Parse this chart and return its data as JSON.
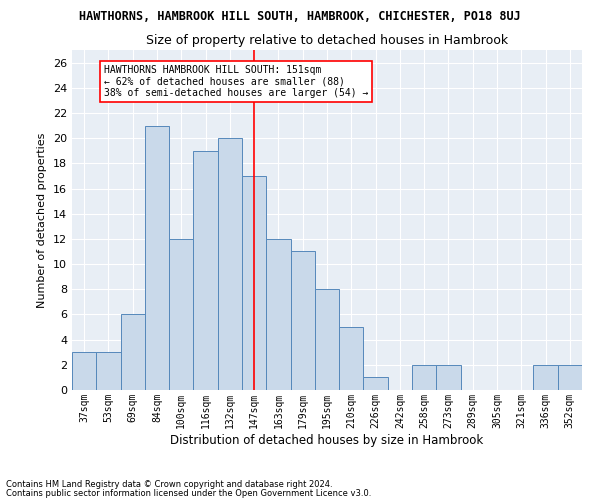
{
  "title": "HAWTHORNS, HAMBROOK HILL SOUTH, HAMBROOK, CHICHESTER, PO18 8UJ",
  "subtitle": "Size of property relative to detached houses in Hambrook",
  "xlabel": "Distribution of detached houses by size in Hambrook",
  "ylabel": "Number of detached properties",
  "bar_color": "#c9d9ea",
  "bar_edge_color": "#5588bb",
  "bg_color": "#e8eef5",
  "grid_color": "#ffffff",
  "categories": [
    "37sqm",
    "53sqm",
    "69sqm",
    "84sqm",
    "100sqm",
    "116sqm",
    "132sqm",
    "147sqm",
    "163sqm",
    "179sqm",
    "195sqm",
    "210sqm",
    "226sqm",
    "242sqm",
    "258sqm",
    "273sqm",
    "289sqm",
    "305sqm",
    "321sqm",
    "336sqm",
    "352sqm"
  ],
  "values": [
    3,
    3,
    6,
    21,
    12,
    19,
    20,
    17,
    12,
    11,
    8,
    5,
    1,
    0,
    2,
    2,
    0,
    0,
    0,
    2,
    2
  ],
  "red_line_x": 7.0,
  "ylim": [
    0,
    27
  ],
  "yticks": [
    0,
    2,
    4,
    6,
    8,
    10,
    12,
    14,
    16,
    18,
    20,
    22,
    24,
    26
  ],
  "annotation_title": "HAWTHORNS HAMBROOK HILL SOUTH: 151sqm",
  "annotation_line1": "← 62% of detached houses are smaller (88)",
  "annotation_line2": "38% of semi-detached houses are larger (54) →",
  "footnote1": "Contains HM Land Registry data © Crown copyright and database right 2024.",
  "footnote2": "Contains public sector information licensed under the Open Government Licence v3.0."
}
